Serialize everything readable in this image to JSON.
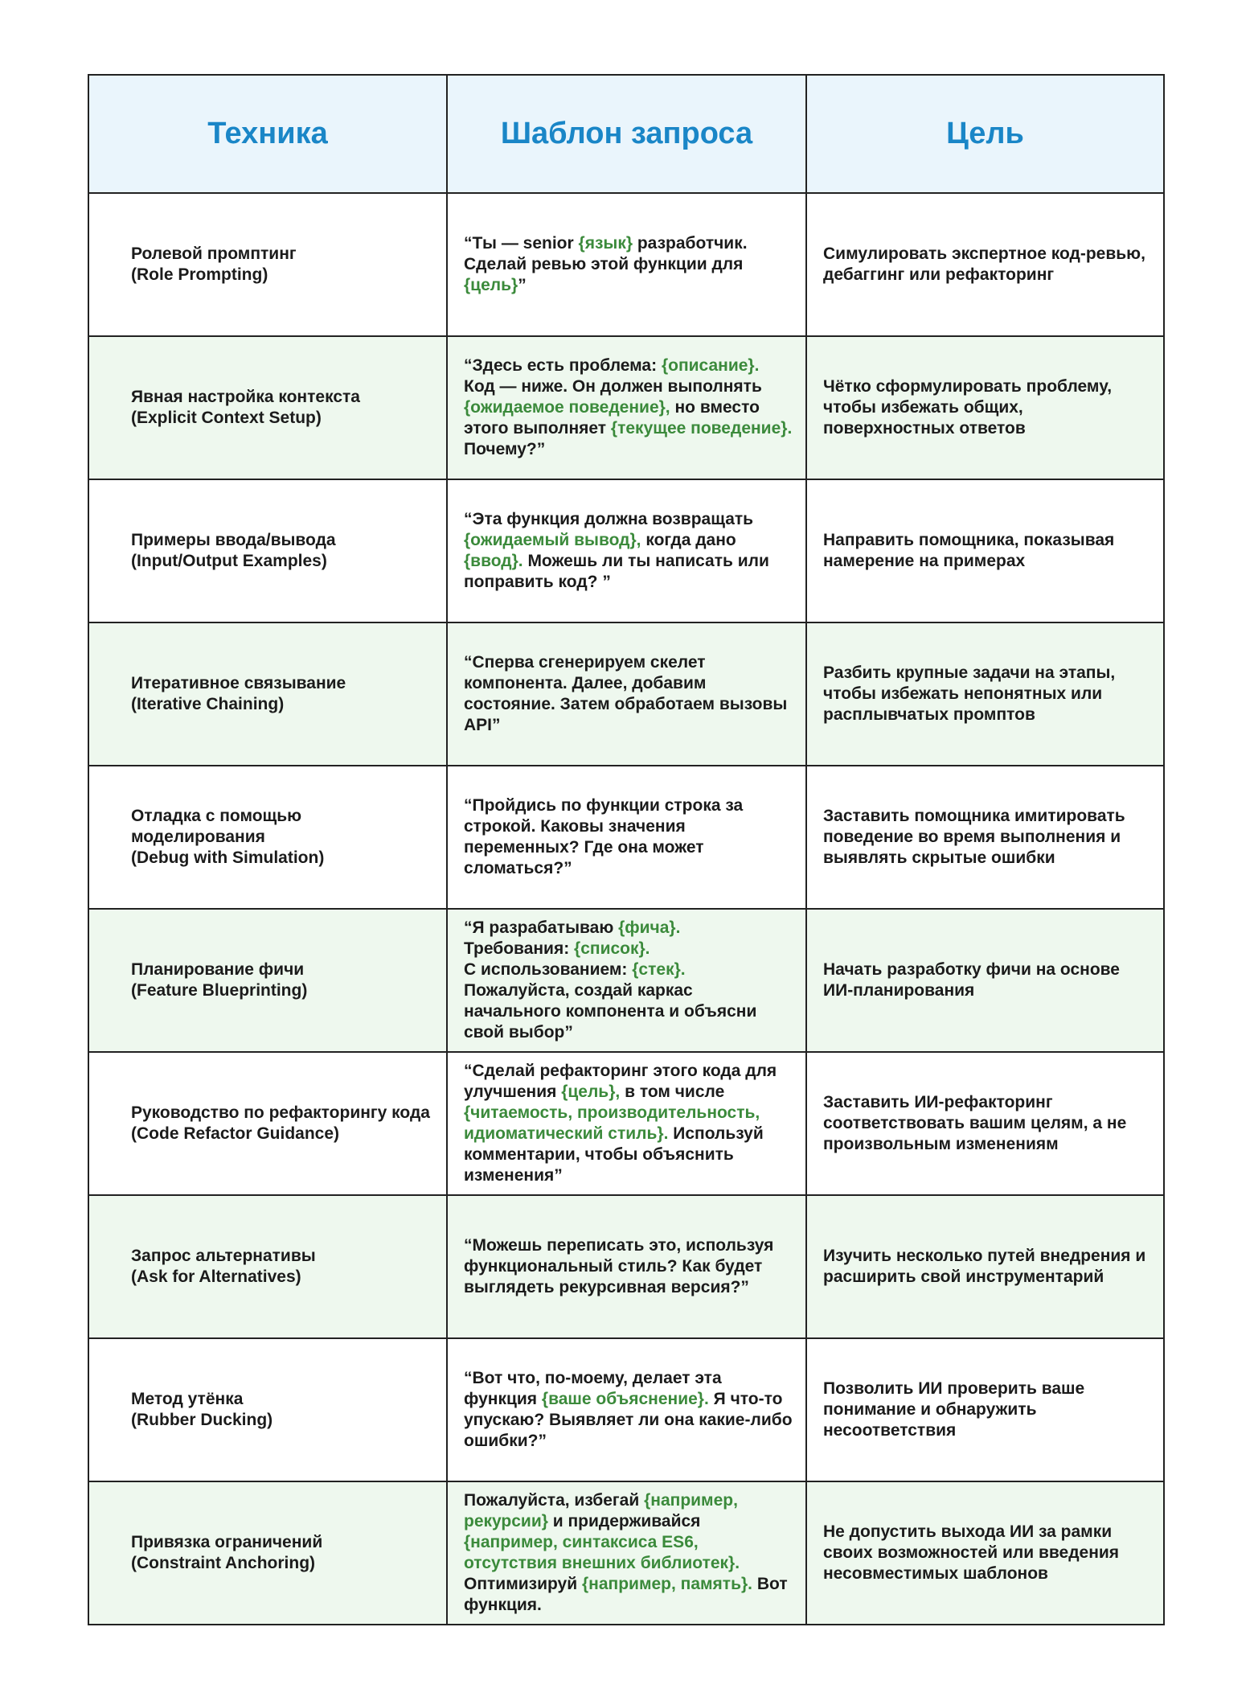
{
  "table": {
    "headers": [
      "Техника",
      "Шаблон запроса",
      "Цель"
    ],
    "rows": [
      {
        "technique": [
          "Ролевой промптинг",
          "(Role Prompting)"
        ],
        "template": [
          [
            {
              "text": "“Ты — senior "
            },
            {
              "var": "{язык}"
            },
            {
              "text": " разработчик. Сделай ревью этой функции для "
            },
            {
              "var": "{цель}"
            },
            {
              "text": "”"
            }
          ]
        ],
        "goal": "Симулировать экспертное код-ревью, дебаггинг или рефакторинг"
      },
      {
        "technique": [
          "Явная настройка контекста",
          "(Explicit Context Setup)"
        ],
        "template": [
          [
            {
              "text": "“Здесь есть проблема: "
            },
            {
              "var": "{описание}."
            },
            {
              "text": " Код — ниже. Он должен выполнять "
            },
            {
              "var": "{ожидаемое поведение},"
            },
            {
              "text": " но вместо этого выполняет "
            },
            {
              "var": "{текущее поведение}."
            },
            {
              "text": " Почему?”"
            }
          ]
        ],
        "goal": "Чётко сформулировать проблему, чтобы избежать общих, поверхностных ответов"
      },
      {
        "technique": [
          "Примеры ввода/вывода",
          "(Input/Output Examples)"
        ],
        "template": [
          [
            {
              "text": "“Эта функция должна возвращать "
            },
            {
              "var": "{ожидаемый вывод},"
            },
            {
              "text": " когда дано "
            },
            {
              "var": "{ввод}."
            },
            {
              "text": " Можешь ли ты написать или поправить код? ”"
            }
          ]
        ],
        "goal": "Направить помощника, показывая намерение на примерах"
      },
      {
        "technique": [
          "Итеративное связывание",
          "(Iterative Chaining)"
        ],
        "template": [
          [
            {
              "text": "“Сперва сгенерируем скелет компонента. Далее, добавим состояние. Затем обработаем вызовы API”"
            }
          ]
        ],
        "goal": "Разбить крупные задачи на этапы, чтобы избежать непонятных или расплывчатых промптов"
      },
      {
        "technique": [
          "Отладка с помощью моделирования",
          "(Debug with Simulation)"
        ],
        "template": [
          [
            {
              "text": "“Пройдись по функции строка за строкой. Каковы значения переменных? Где она может сломаться?”"
            }
          ]
        ],
        "goal": "Заставить помощника имитировать поведение во время выполнения и выявлять скрытые ошибки"
      },
      {
        "technique": [
          "Планирование фичи",
          "(Feature Blueprinting)"
        ],
        "template": [
          [
            {
              "text": "“Я разрабатываю "
            },
            {
              "var": "{фича}."
            }
          ],
          [
            {
              "text": "Требования: "
            },
            {
              "var": "{список}."
            }
          ],
          [
            {
              "text": "С использованием: "
            },
            {
              "var": "{стек}."
            }
          ],
          [
            {
              "text": "Пожалуйста, создай каркас начального компонента и объясни свой выбор”"
            }
          ]
        ],
        "goal": "Начать разработку фичи на основе ИИ-планирования"
      },
      {
        "technique": [
          "Руководство по рефакторингу кода",
          "(Code Refactor Guidance)"
        ],
        "template": [
          [
            {
              "text": "“Сделай рефакторинг этого кода для улучшения "
            },
            {
              "var": "{цель},"
            },
            {
              "text": " в том числе "
            },
            {
              "var": "{читаемость, производительность, идиоматический стиль}."
            },
            {
              "text": " Используй комментарии, чтобы объяснить изменения”"
            }
          ]
        ],
        "goal": "Заставить ИИ-рефакторинг соответствовать вашим целям, а не произвольным изменениям"
      },
      {
        "technique": [
          "Запрос альтернативы",
          "(Ask for Alternatives)"
        ],
        "template": [
          [
            {
              "text": "“Можешь переписать это, используя функциональный стиль? Как будет выглядеть рекурсивная версия?”"
            }
          ]
        ],
        "goal": "Изучить несколько путей внедрения и расширить свой инструментарий"
      },
      {
        "technique": [
          "Метод утёнка",
          "(Rubber Ducking)"
        ],
        "template": [
          [
            {
              "text": "“Вот что, по-моему, делает эта функция "
            },
            {
              "var": "{ваше объяснение}."
            },
            {
              "text": " Я что-то упускаю? Выявляет ли она какие-либо ошибки?”"
            }
          ]
        ],
        "goal": "Позволить ИИ проверить ваше понимание и обнаружить несоответствия"
      },
      {
        "technique": [
          "Привязка ограничений",
          "(Constraint Anchoring)"
        ],
        "template": [
          [
            {
              "text": "Пожалуйста, избегай "
            },
            {
              "var": "{например, рекурсии}"
            },
            {
              "text": " и придерживайся "
            },
            {
              "var": "{например, синтаксиса ES6, отсутствия внешних библиотек}."
            },
            {
              "text": " Оптимизируй "
            },
            {
              "var": "{например, память}."
            },
            {
              "text": " Вот функция."
            }
          ]
        ],
        "goal": "Не допустить выхода ИИ за рамки своих возможностей или введения несовместимых шаблонов"
      }
    ]
  }
}
